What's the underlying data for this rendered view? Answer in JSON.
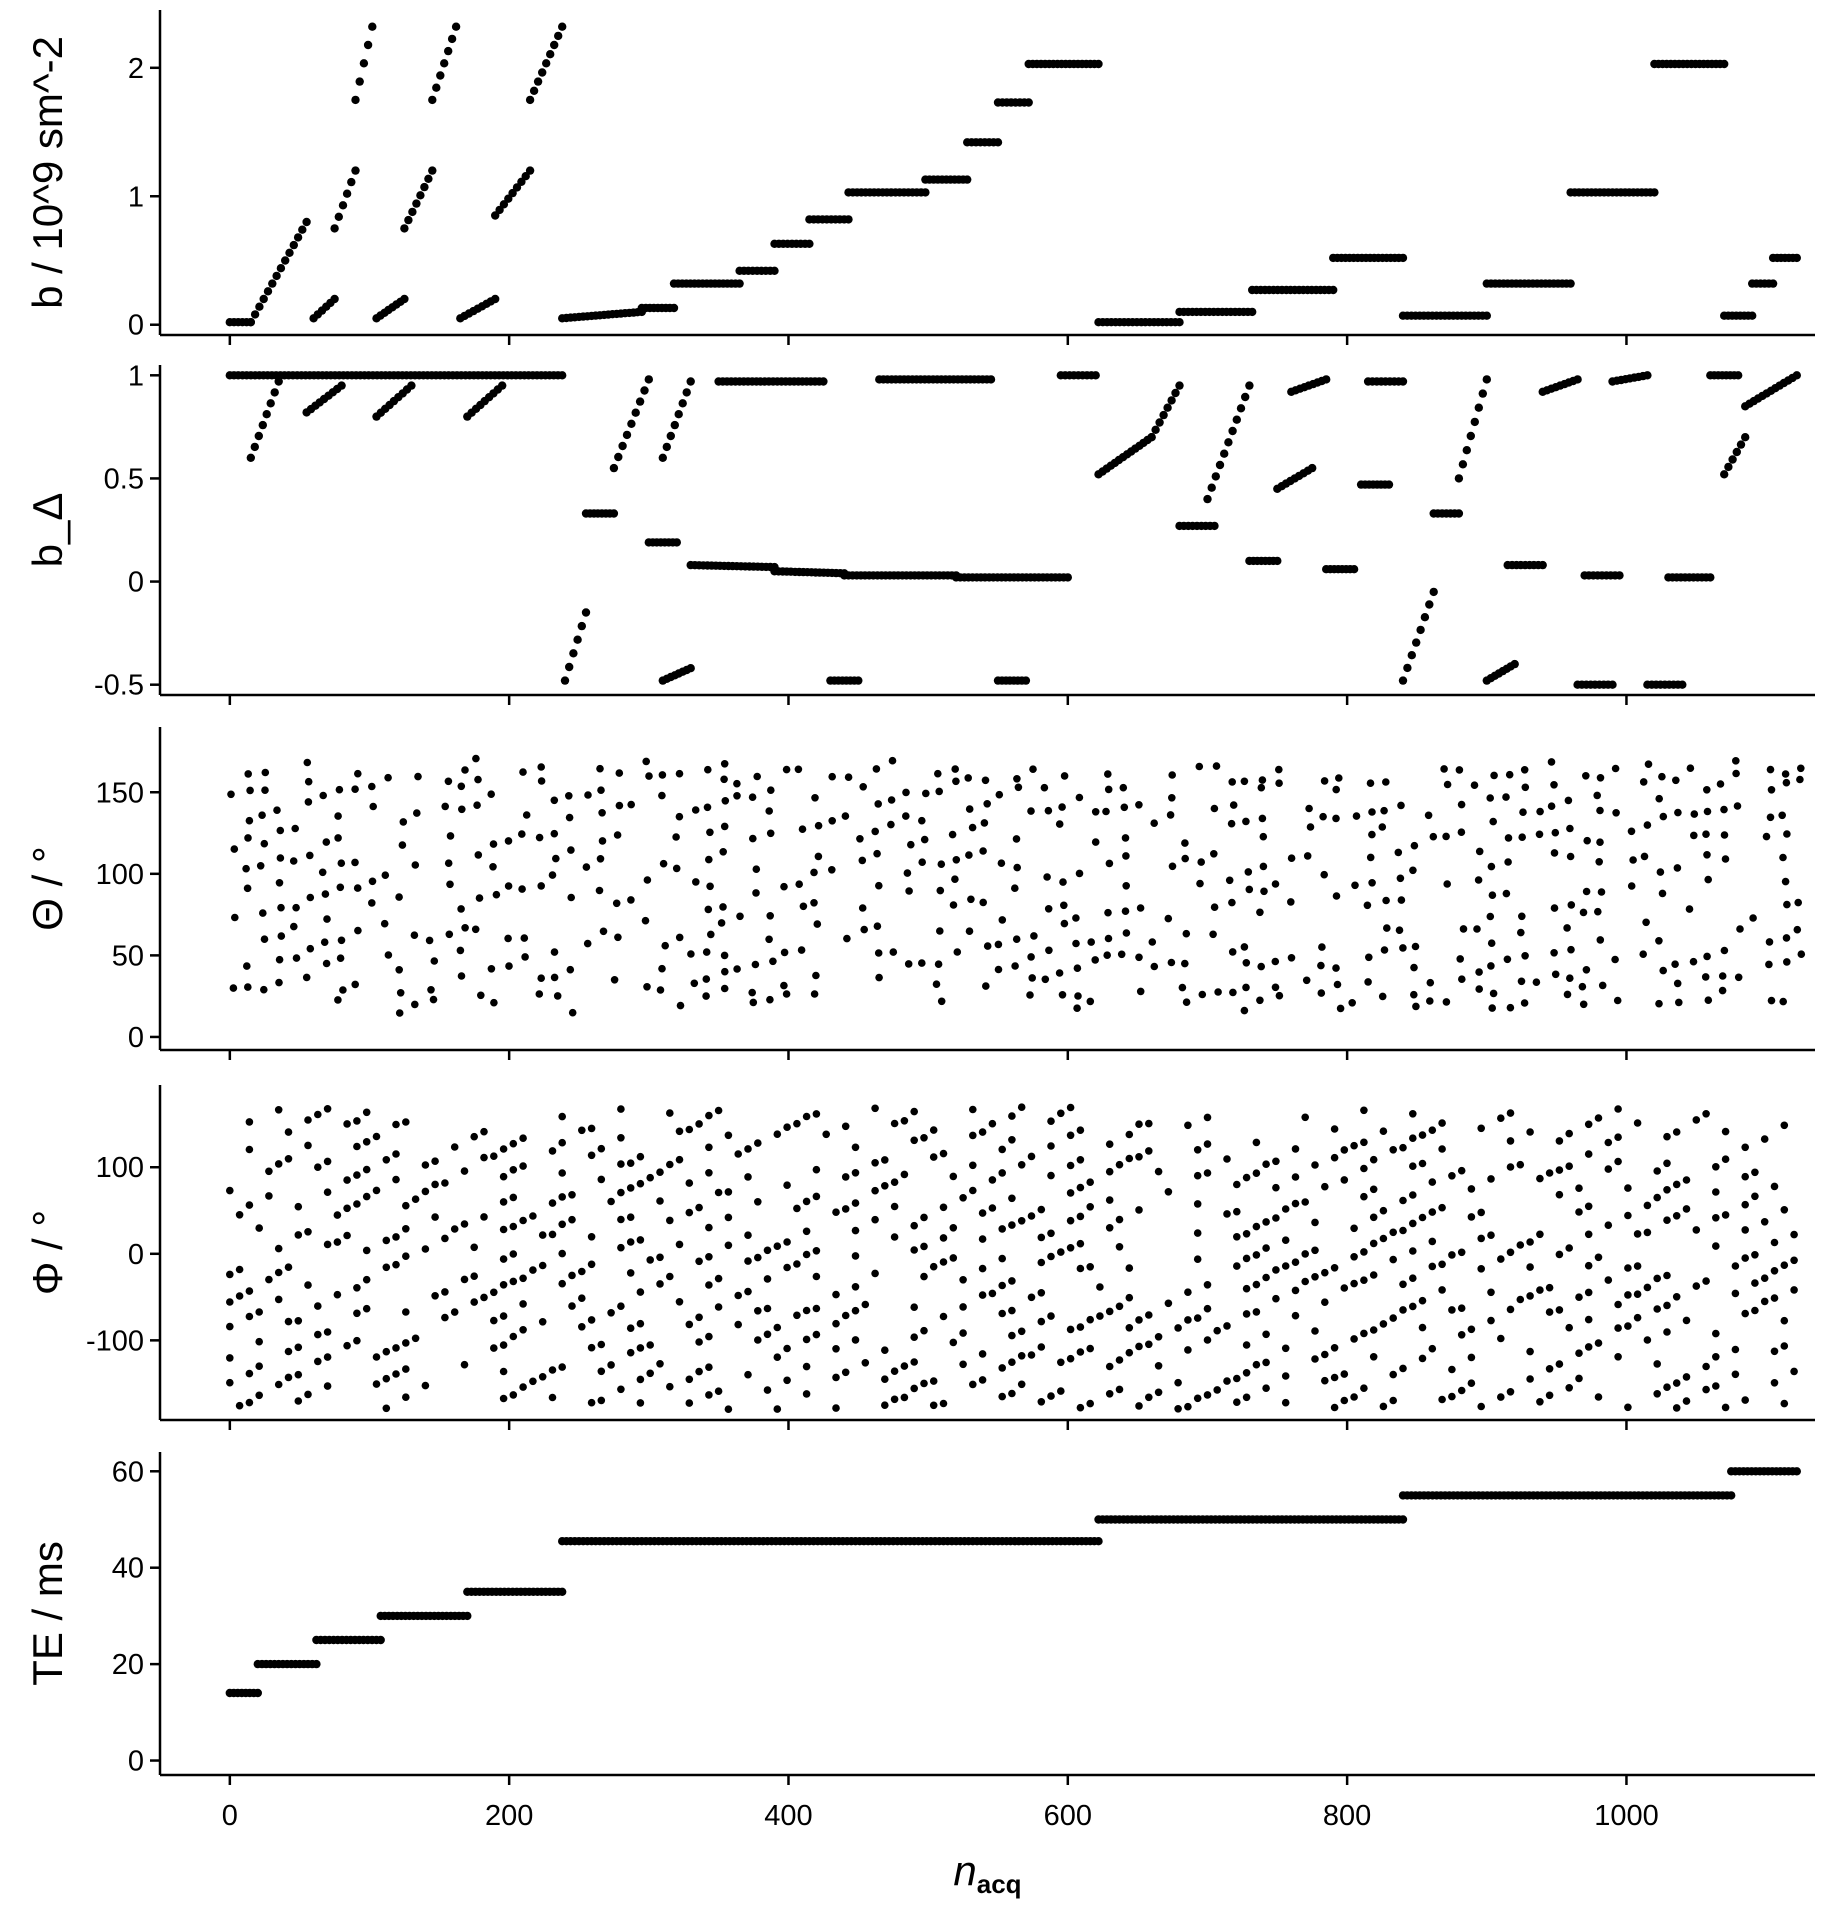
{
  "chart_data": {
    "type": "scatter",
    "layout": "stacked-panels-shared-x",
    "marker_color": "#000000",
    "grid": false,
    "xaxis": {
      "label": "n_acq",
      "xlim": [
        -50,
        1135
      ],
      "ticks": [
        0,
        200,
        400,
        600,
        800,
        1000
      ],
      "tick_labels": [
        "0",
        "200",
        "400",
        "600",
        "800",
        "1000"
      ]
    },
    "panels": [
      {
        "ylabel": "b / 10^9 sm^-2",
        "ylim": [
          -0.08,
          2.45
        ],
        "yticks": [
          0,
          1,
          2
        ],
        "ytick_labels": [
          "0",
          "1",
          "2"
        ],
        "description_of_pattern": "stepwise b plateaus and ramps per acquisition block",
        "segments": [
          {
            "x0": 0,
            "x1": 15,
            "y0": 0.02,
            "y1": 0.02
          },
          {
            "x0": 15,
            "x1": 55,
            "y0": 0.02,
            "y1": 0.8
          },
          {
            "x0": 60,
            "x1": 75,
            "y0": 0.05,
            "y1": 0.2
          },
          {
            "x0": 75,
            "x1": 90,
            "y0": 0.75,
            "y1": 1.2
          },
          {
            "x0": 90,
            "x1": 102,
            "y0": 1.75,
            "y1": 2.32
          },
          {
            "x0": 105,
            "x1": 125,
            "y0": 0.05,
            "y1": 0.2
          },
          {
            "x0": 125,
            "x1": 145,
            "y0": 0.75,
            "y1": 1.2
          },
          {
            "x0": 145,
            "x1": 162,
            "y0": 1.75,
            "y1": 2.32
          },
          {
            "x0": 165,
            "x1": 190,
            "y0": 0.05,
            "y1": 0.2
          },
          {
            "x0": 190,
            "x1": 215,
            "y0": 0.85,
            "y1": 1.2
          },
          {
            "x0": 215,
            "x1": 238,
            "y0": 1.75,
            "y1": 2.32
          },
          {
            "x0": 238,
            "x1": 295,
            "y0": 0.05,
            "y1": 0.1
          },
          {
            "x0": 295,
            "x1": 318,
            "y0": 0.13,
            "y1": 0.13
          },
          {
            "x0": 318,
            "x1": 365,
            "y0": 0.32,
            "y1": 0.32
          },
          {
            "x0": 365,
            "x1": 390,
            "y0": 0.42,
            "y1": 0.42
          },
          {
            "x0": 390,
            "x1": 415,
            "y0": 0.63,
            "y1": 0.63
          },
          {
            "x0": 415,
            "x1": 443,
            "y0": 0.82,
            "y1": 0.82
          },
          {
            "x0": 443,
            "x1": 498,
            "y0": 1.03,
            "y1": 1.03
          },
          {
            "x0": 498,
            "x1": 528,
            "y0": 1.13,
            "y1": 1.13
          },
          {
            "x0": 528,
            "x1": 550,
            "y0": 1.42,
            "y1": 1.42
          },
          {
            "x0": 550,
            "x1": 572,
            "y0": 1.73,
            "y1": 1.73
          },
          {
            "x0": 572,
            "x1": 622,
            "y0": 2.03,
            "y1": 2.03
          },
          {
            "x0": 622,
            "x1": 680,
            "y0": 0.02,
            "y1": 0.02
          },
          {
            "x0": 680,
            "x1": 732,
            "y0": 0.1,
            "y1": 0.1
          },
          {
            "x0": 732,
            "x1": 790,
            "y0": 0.27,
            "y1": 0.27
          },
          {
            "x0": 790,
            "x1": 840,
            "y0": 0.52,
            "y1": 0.52
          },
          {
            "x0": 840,
            "x1": 900,
            "y0": 0.07,
            "y1": 0.07
          },
          {
            "x0": 900,
            "x1": 960,
            "y0": 0.32,
            "y1": 0.32
          },
          {
            "x0": 960,
            "x1": 1020,
            "y0": 1.03,
            "y1": 1.03
          },
          {
            "x0": 1020,
            "x1": 1070,
            "y0": 2.03,
            "y1": 2.03
          },
          {
            "x0": 1070,
            "x1": 1090,
            "y0": 0.07,
            "y1": 0.07
          },
          {
            "x0": 1090,
            "x1": 1105,
            "y0": 0.32,
            "y1": 0.32
          },
          {
            "x0": 1105,
            "x1": 1122,
            "y0": 0.52,
            "y1": 0.52
          }
        ]
      },
      {
        "ylabel": "b_Δ",
        "ylim": [
          -0.55,
          1.05
        ],
        "yticks": [
          -0.5,
          0,
          0.5,
          1
        ],
        "ytick_labels": [
          "-0.5",
          "0",
          "0.5",
          "1"
        ],
        "segments": [
          {
            "x0": 0,
            "x1": 238,
            "y0": 1.0,
            "y1": 1.0
          },
          {
            "x0": 15,
            "x1": 35,
            "y0": 0.6,
            "y1": 0.97
          },
          {
            "x0": 55,
            "x1": 80,
            "y0": 0.82,
            "y1": 0.95
          },
          {
            "x0": 105,
            "x1": 130,
            "y0": 0.8,
            "y1": 0.95
          },
          {
            "x0": 170,
            "x1": 195,
            "y0": 0.8,
            "y1": 0.95
          },
          {
            "x0": 240,
            "x1": 255,
            "y0": -0.48,
            "y1": -0.15
          },
          {
            "x0": 255,
            "x1": 275,
            "y0": 0.33,
            "y1": 0.33
          },
          {
            "x0": 275,
            "x1": 300,
            "y0": 0.55,
            "y1": 0.98
          },
          {
            "x0": 300,
            "x1": 320,
            "y0": 0.19,
            "y1": 0.19
          },
          {
            "x0": 310,
            "x1": 330,
            "y0": 0.6,
            "y1": 0.97
          },
          {
            "x0": 310,
            "x1": 330,
            "y0": -0.48,
            "y1": -0.42
          },
          {
            "x0": 330,
            "x1": 390,
            "y0": 0.08,
            "y1": 0.07
          },
          {
            "x0": 390,
            "x1": 440,
            "y0": 0.05,
            "y1": 0.04
          },
          {
            "x0": 440,
            "x1": 520,
            "y0": 0.03,
            "y1": 0.03
          },
          {
            "x0": 520,
            "x1": 600,
            "y0": 0.02,
            "y1": 0.02
          },
          {
            "x0": 350,
            "x1": 425,
            "y0": 0.97,
            "y1": 0.97
          },
          {
            "x0": 465,
            "x1": 545,
            "y0": 0.98,
            "y1": 0.98
          },
          {
            "x0": 595,
            "x1": 620,
            "y0": 1.0,
            "y1": 1.0
          },
          {
            "x0": 430,
            "x1": 450,
            "y0": -0.48,
            "y1": -0.48
          },
          {
            "x0": 550,
            "x1": 570,
            "y0": -0.48,
            "y1": -0.48
          },
          {
            "x0": 622,
            "x1": 660,
            "y0": 0.52,
            "y1": 0.7
          },
          {
            "x0": 660,
            "x1": 680,
            "y0": 0.7,
            "y1": 0.95
          },
          {
            "x0": 680,
            "x1": 705,
            "y0": 0.27,
            "y1": 0.27
          },
          {
            "x0": 700,
            "x1": 730,
            "y0": 0.4,
            "y1": 0.95
          },
          {
            "x0": 730,
            "x1": 750,
            "y0": 0.1,
            "y1": 0.1
          },
          {
            "x0": 750,
            "x1": 775,
            "y0": 0.45,
            "y1": 0.55
          },
          {
            "x0": 760,
            "x1": 785,
            "y0": 0.92,
            "y1": 0.98
          },
          {
            "x0": 785,
            "x1": 805,
            "y0": 0.06,
            "y1": 0.06
          },
          {
            "x0": 810,
            "x1": 830,
            "y0": 0.47,
            "y1": 0.47
          },
          {
            "x0": 815,
            "x1": 840,
            "y0": 0.97,
            "y1": 0.97
          },
          {
            "x0": 840,
            "x1": 862,
            "y0": -0.48,
            "y1": -0.05
          },
          {
            "x0": 862,
            "x1": 880,
            "y0": 0.33,
            "y1": 0.33
          },
          {
            "x0": 880,
            "x1": 900,
            "y0": 0.5,
            "y1": 0.98
          },
          {
            "x0": 900,
            "x1": 920,
            "y0": -0.48,
            "y1": -0.4
          },
          {
            "x0": 915,
            "x1": 940,
            "y0": 0.08,
            "y1": 0.08
          },
          {
            "x0": 940,
            "x1": 965,
            "y0": 0.92,
            "y1": 0.98
          },
          {
            "x0": 965,
            "x1": 990,
            "y0": -0.5,
            "y1": -0.5
          },
          {
            "x0": 970,
            "x1": 995,
            "y0": 0.03,
            "y1": 0.03
          },
          {
            "x0": 990,
            "x1": 1015,
            "y0": 0.97,
            "y1": 1.0
          },
          {
            "x0": 1015,
            "x1": 1040,
            "y0": -0.5,
            "y1": -0.5
          },
          {
            "x0": 1030,
            "x1": 1060,
            "y0": 0.02,
            "y1": 0.02
          },
          {
            "x0": 1060,
            "x1": 1080,
            "y0": 1.0,
            "y1": 1.0
          },
          {
            "x0": 1070,
            "x1": 1085,
            "y0": 0.52,
            "y1": 0.7
          },
          {
            "x0": 1085,
            "x1": 1122,
            "y0": 0.85,
            "y1": 1.0
          }
        ]
      },
      {
        "ylabel": "Θ / °",
        "ylim": [
          -8,
          190
        ],
        "yticks": [
          0,
          50,
          100,
          150
        ],
        "ytick_labels": [
          "0",
          "50",
          "100",
          "150"
        ],
        "pattern": "repeating vertical clusters of points between ~10 and ~170 degrees across all blocks"
      },
      {
        "ylabel": "Φ / °",
        "ylim": [
          -192,
          195
        ],
        "yticks": [
          -100,
          0,
          100
        ],
        "ytick_labels": [
          "-100",
          "0",
          "100"
        ],
        "pattern": "dense interleaved points between -180 and 180 degrees with diagonal banding"
      },
      {
        "ylabel": "TE / ms",
        "ylim": [
          -3,
          64
        ],
        "yticks": [
          0,
          20,
          40,
          60
        ],
        "ytick_labels": [
          "0",
          "20",
          "40",
          "60"
        ],
        "segments": [
          {
            "x0": 0,
            "x1": 20,
            "y0": 14,
            "y1": 14
          },
          {
            "x0": 20,
            "x1": 62,
            "y0": 20,
            "y1": 20
          },
          {
            "x0": 62,
            "x1": 108,
            "y0": 25,
            "y1": 25
          },
          {
            "x0": 108,
            "x1": 170,
            "y0": 30,
            "y1": 30
          },
          {
            "x0": 170,
            "x1": 238,
            "y0": 35,
            "y1": 35
          },
          {
            "x0": 238,
            "x1": 622,
            "y0": 45.5,
            "y1": 45.5
          },
          {
            "x0": 622,
            "x1": 840,
            "y0": 50,
            "y1": 50
          },
          {
            "x0": 840,
            "x1": 1075,
            "y0": 55,
            "y1": 55
          },
          {
            "x0": 1075,
            "x1": 1122,
            "y0": 60,
            "y1": 60
          }
        ]
      }
    ]
  }
}
